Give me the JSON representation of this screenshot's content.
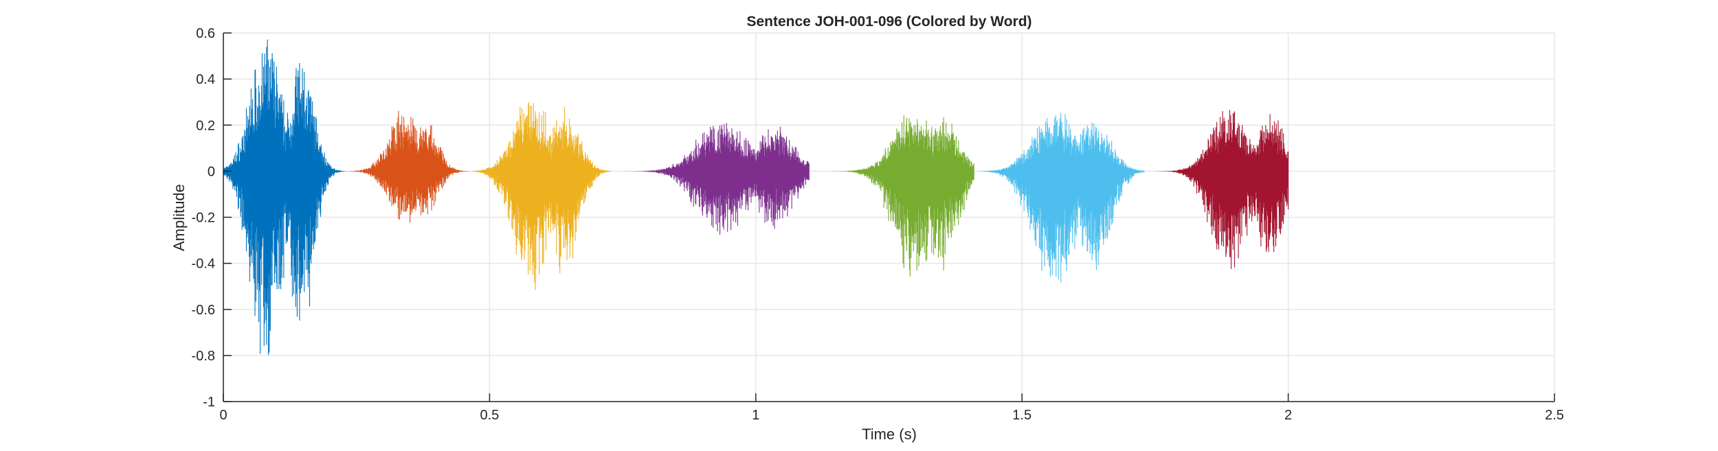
{
  "chart_data": {
    "type": "line",
    "title": "Sentence JOH-001-096 (Colored by Word)",
    "xlabel": "Time (s)",
    "ylabel": "Amplitude",
    "xlim": [
      0,
      2.5
    ],
    "ylim": [
      -1,
      0.6
    ],
    "xticks": [
      "0",
      "0.5",
      "1",
      "1.5",
      "2",
      "2.5"
    ],
    "xtick_values": [
      0,
      0.5,
      1,
      1.5,
      2,
      2.5
    ],
    "yticks": [
      "-1",
      "-0.8",
      "-0.6",
      "-0.4",
      "-0.2",
      "0",
      "0.2",
      "0.4",
      "0.6"
    ],
    "ytick_values": [
      -1,
      -0.8,
      -0.6,
      -0.4,
      -0.2,
      0,
      0.2,
      0.4,
      0.6
    ],
    "grid": true,
    "series": [
      {
        "start": 0.0,
        "end": 0.23,
        "max": 0.58,
        "min": -0.83,
        "color": "#0072BD"
      },
      {
        "start": 0.23,
        "end": 0.47,
        "max": 0.27,
        "min": -0.23,
        "color": "#D95319"
      },
      {
        "start": 0.47,
        "end": 0.73,
        "max": 0.33,
        "min": -0.52,
        "color": "#EDB120"
      },
      {
        "start": 0.74,
        "end": 1.1,
        "max": 0.23,
        "min": -0.29,
        "color": "#7E2F8E"
      },
      {
        "start": 1.1,
        "end": 1.41,
        "max": 0.27,
        "min": -0.47,
        "color": "#77AC30"
      },
      {
        "start": 1.42,
        "end": 1.73,
        "max": 0.27,
        "min": -0.53,
        "color": "#4DBEEE"
      },
      {
        "start": 1.73,
        "end": 2.0,
        "max": 0.3,
        "min": -0.46,
        "color": "#A2142F"
      }
    ]
  }
}
